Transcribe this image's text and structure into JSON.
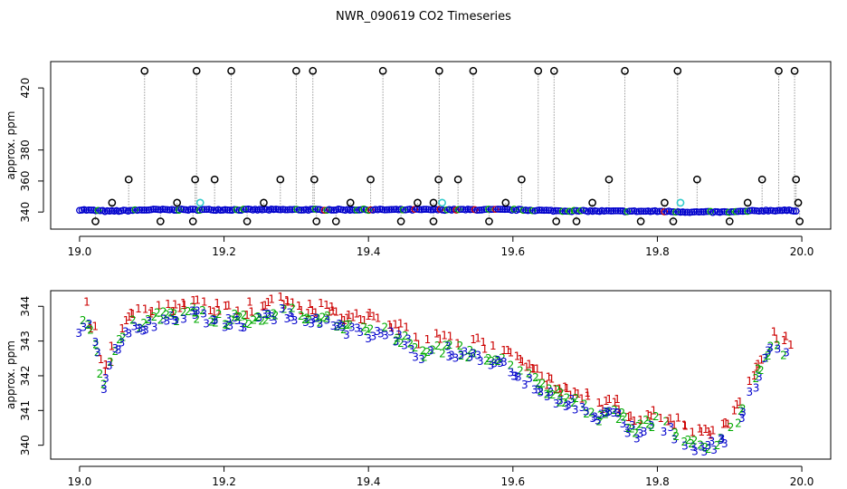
{
  "title": "NWR_090619  CO2 Timeseries",
  "chart_data": [
    {
      "type": "scatter",
      "ylabel": "approx. ppm",
      "xlim": [
        18.96,
        20.04
      ],
      "ylim": [
        329,
        437
      ],
      "xticks": [
        19.0,
        19.2,
        19.4,
        19.6,
        19.8,
        20.0
      ],
      "xtick_labels": [
        "19.0",
        "19.2",
        "19.4",
        "19.6",
        "19.8",
        "20.0"
      ],
      "yticks": [
        340,
        360,
        380,
        420
      ],
      "ytick_labels": [
        "340",
        "360",
        "380",
        "420"
      ],
      "baseline": {
        "x": [
          19.0,
          19.04,
          19.1,
          19.16,
          19.2,
          19.3,
          19.4,
          19.5,
          19.6,
          19.66,
          19.75,
          19.8,
          19.85,
          19.9,
          19.95,
          19.995
        ],
        "y": [
          341.5,
          340.5,
          341.5,
          341.5,
          341.5,
          341.5,
          341.5,
          341.5,
          341.5,
          340.8,
          340.5,
          340.5,
          340.0,
          340.0,
          341.0,
          341.0
        ]
      },
      "outliers_high": {
        "x": [
          19.09,
          19.162,
          19.21,
          19.3,
          19.323,
          19.42,
          19.498,
          19.545,
          19.635,
          19.657,
          19.755,
          19.828,
          19.968,
          19.99
        ],
        "y": [
          431,
          431,
          431,
          431,
          431,
          431,
          431,
          431,
          431,
          431,
          431,
          431,
          431,
          431
        ]
      },
      "outliers_mid": {
        "x": [
          19.068,
          19.16,
          19.187,
          19.278,
          19.325,
          19.403,
          19.497,
          19.524,
          19.612,
          19.733,
          19.855,
          19.945,
          19.992
        ],
        "y": [
          361,
          361,
          361,
          361,
          361,
          361,
          361,
          361,
          361,
          361,
          361,
          361,
          361
        ]
      },
      "outliers_near": {
        "x": [
          19.045,
          19.135,
          19.255,
          19.375,
          19.468,
          19.49,
          19.59,
          19.71,
          19.81,
          19.925,
          19.995
        ],
        "y": [
          346,
          346,
          346,
          346,
          346,
          346,
          346,
          346,
          346,
          346,
          346
        ]
      },
      "outliers_low": {
        "x": [
          19.022,
          19.112,
          19.157,
          19.232,
          19.328,
          19.355,
          19.445,
          19.49,
          19.567,
          19.66,
          19.688,
          19.777,
          19.822,
          19.9,
          19.997
        ],
        "y": [
          334,
          334,
          334,
          334,
          334,
          334,
          334,
          334,
          334,
          334,
          334,
          334,
          334,
          334,
          334
        ]
      },
      "highlight_points": {
        "x": [
          19.167,
          19.502,
          19.832
        ],
        "y": [
          346,
          346,
          346
        ]
      },
      "colors": {
        "outlier": "#000000",
        "main": "#0000cc",
        "alt1": "#00aa00",
        "alt2": "#cc0000",
        "highlight": "#33cccc",
        "drop": "#999999"
      }
    },
    {
      "type": "scatter",
      "ylabel": "approx. ppm",
      "xlim": [
        18.96,
        20.04
      ],
      "ylim": [
        339.6,
        344.45
      ],
      "xticks": [
        19.0,
        19.2,
        19.4,
        19.6,
        19.8,
        20.0
      ],
      "xtick_labels": [
        "19.0",
        "19.2",
        "19.4",
        "19.6",
        "19.8",
        "20.0"
      ],
      "yticks": [
        340,
        341,
        342,
        343,
        344
      ],
      "ytick_labels": [
        "340",
        "341",
        "342",
        "343",
        "344"
      ],
      "series": [
        {
          "name": "1",
          "marker": "1",
          "color": "#cc0000"
        },
        {
          "name": "2",
          "marker": "2",
          "color": "#00aa00"
        },
        {
          "name": "3",
          "marker": "3",
          "color": "#0000cc"
        }
      ],
      "trend": {
        "x": [
          19.0,
          19.007,
          19.015,
          19.025,
          19.032,
          19.04,
          19.05,
          19.07,
          19.1,
          19.13,
          19.16,
          19.2,
          19.23,
          19.28,
          19.31,
          19.34,
          19.38,
          19.42,
          19.46,
          19.47,
          19.5,
          19.55,
          19.6,
          19.63,
          19.66,
          19.69,
          19.72,
          19.74,
          19.77,
          19.8,
          19.83,
          19.86,
          19.89,
          19.91,
          19.93,
          19.95,
          19.96,
          19.985
        ],
        "y": [
          343.5,
          343.9,
          343.4,
          342.9,
          341.9,
          342.2,
          342.9,
          343.5,
          343.7,
          343.8,
          343.9,
          343.7,
          343.7,
          344.0,
          343.7,
          343.7,
          343.4,
          343.4,
          343.0,
          342.7,
          342.9,
          342.7,
          342.3,
          341.9,
          341.5,
          341.3,
          340.9,
          341.1,
          340.5,
          340.8,
          340.4,
          340.1,
          340.2,
          340.7,
          341.7,
          342.6,
          343.0,
          342.7
        ]
      }
    }
  ]
}
